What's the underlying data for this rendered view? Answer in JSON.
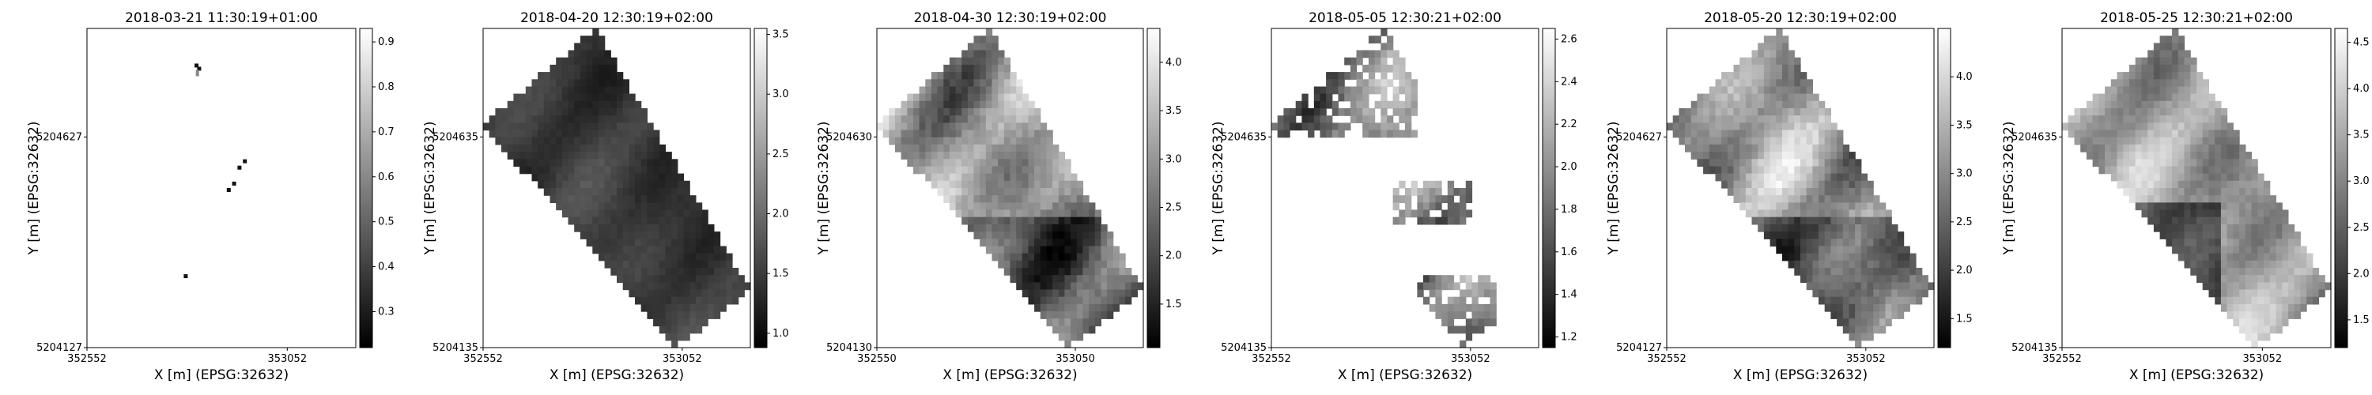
{
  "chart_data": [
    {
      "type": "heatmap",
      "title": "2018-03-21 11:30:19+01:00",
      "xlabel": "X [m] (EPSG:32632)",
      "ylabel": "Y [m] (EPSG:32632)",
      "xticks": [
        "352552",
        "353052"
      ],
      "yticks": [
        "5204627",
        "5204127"
      ],
      "colorbar": {
        "min": 0.22,
        "max": 0.93,
        "ticks": [
          "0.3",
          "0.4",
          "0.5",
          "0.6",
          "0.7",
          "0.8",
          "0.9"
        ],
        "tick_values": [
          0.3,
          0.4,
          0.5,
          0.6,
          0.7,
          0.8,
          0.9
        ]
      },
      "colormap": "gray",
      "fill": "sparse"
    },
    {
      "type": "heatmap",
      "title": "2018-04-20 12:30:19+02:00",
      "xlabel": "X [m] (EPSG:32632)",
      "ylabel": "Y [m] (EPSG:32632)",
      "xticks": [
        "352552",
        "353052"
      ],
      "yticks": [
        "5204635",
        "5204135"
      ],
      "colorbar": {
        "min": 0.88,
        "max": 3.55,
        "ticks": [
          "1.0",
          "1.5",
          "2.0",
          "2.5",
          "3.0",
          "3.5"
        ],
        "tick_values": [
          1.0,
          1.5,
          2.0,
          2.5,
          3.0,
          3.5
        ]
      },
      "colormap": "gray",
      "fill": "dark"
    },
    {
      "type": "heatmap",
      "title": "2018-04-30 12:30:19+02:00",
      "xlabel": "X [m] (EPSG:32632)",
      "ylabel": "Y [m] (EPSG:32632)",
      "xticks": [
        "352550",
        "353050"
      ],
      "yticks": [
        "5204630",
        "5204130"
      ],
      "colorbar": {
        "min": 1.05,
        "max": 4.35,
        "ticks": [
          "1.5",
          "2.0",
          "2.5",
          "3.0",
          "3.5",
          "4.0"
        ],
        "tick_values": [
          1.5,
          2.0,
          2.5,
          3.0,
          3.5,
          4.0
        ]
      },
      "colormap": "gray",
      "fill": "mixed"
    },
    {
      "type": "heatmap",
      "title": "2018-05-05 12:30:21+02:00",
      "xlabel": "X [m] (EPSG:32632)",
      "ylabel": "Y [m] (EPSG:32632)",
      "xticks": [
        "352552",
        "353052"
      ],
      "yticks": [
        "5204635",
        "5204135"
      ],
      "colorbar": {
        "min": 1.15,
        "max": 2.65,
        "ticks": [
          "1.2",
          "1.4",
          "1.6",
          "1.8",
          "2.0",
          "2.2",
          "2.4",
          "2.6"
        ],
        "tick_values": [
          1.2,
          1.4,
          1.6,
          1.8,
          2.0,
          2.2,
          2.4,
          2.6
        ]
      },
      "colormap": "gray",
      "fill": "patchy"
    },
    {
      "type": "heatmap",
      "title": "2018-05-20 12:30:19+02:00",
      "xlabel": "X [m] (EPSG:32632)",
      "ylabel": "Y [m] (EPSG:32632)",
      "xticks": [
        "352552",
        "353052"
      ],
      "yticks": [
        "5204627",
        "5204127"
      ],
      "colorbar": {
        "min": 1.2,
        "max": 4.5,
        "ticks": [
          "1.5",
          "2.0",
          "2.5",
          "3.0",
          "3.5",
          "4.0"
        ],
        "tick_values": [
          1.5,
          2.0,
          2.5,
          3.0,
          3.5,
          4.0
        ]
      },
      "colormap": "gray",
      "fill": "mixed"
    },
    {
      "type": "heatmap",
      "title": "2018-05-25 12:30:21+02:00",
      "xlabel": "X [m] (EPSG:32632)",
      "ylabel": "Y [m] (EPSG:32632)",
      "xticks": [
        "352552",
        "353052"
      ],
      "yticks": [
        "5204635",
        "5204135"
      ],
      "colorbar": {
        "min": 1.2,
        "max": 4.65,
        "ticks": [
          "1.5",
          "2.0",
          "2.5",
          "3.0",
          "3.5",
          "4.0",
          "4.5"
        ],
        "tick_values": [
          1.5,
          2.0,
          2.5,
          3.0,
          3.5,
          4.0,
          4.5
        ]
      },
      "colormap": "gray",
      "fill": "bright"
    }
  ]
}
